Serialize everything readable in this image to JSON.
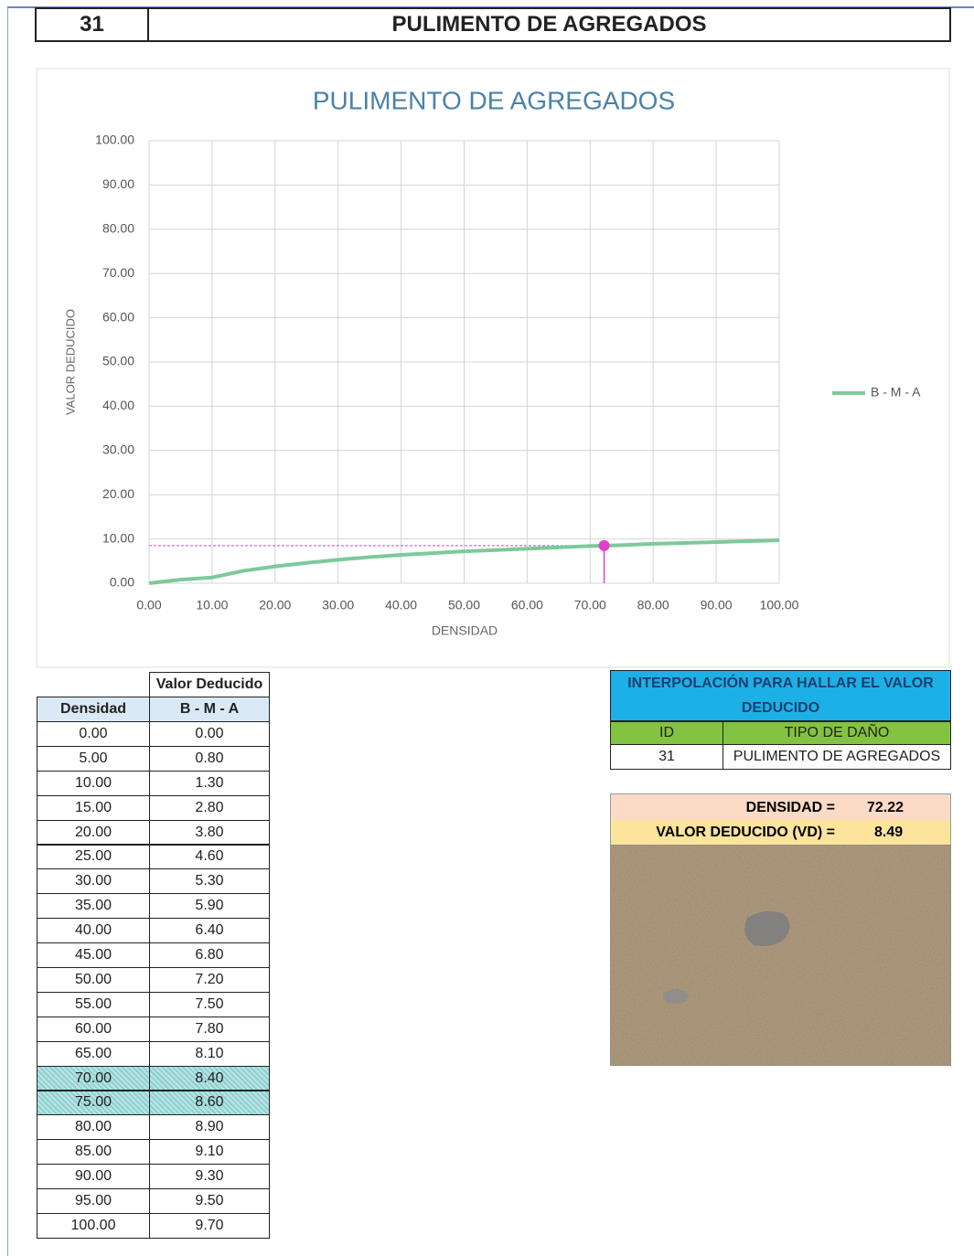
{
  "header": {
    "id": "31",
    "title": "PULIMENTO DE AGREGADOS"
  },
  "chart_data": {
    "type": "line",
    "title": "PULIMENTO  DE AGREGADOS",
    "x_label": "DENSIDAD",
    "y_label": "VALOR DEDUCIDO",
    "x": [
      0,
      5,
      10,
      15,
      20,
      25,
      30,
      35,
      40,
      45,
      50,
      55,
      60,
      65,
      70,
      75,
      80,
      85,
      90,
      95,
      100
    ],
    "series": [
      {
        "name": "B - M - A",
        "color": "#7dc99a",
        "values": [
          0,
          0.8,
          1.3,
          2.8,
          3.8,
          4.6,
          5.3,
          5.9,
          6.4,
          6.8,
          7.2,
          7.5,
          7.8,
          8.1,
          8.4,
          8.6,
          8.9,
          9.1,
          9.3,
          9.5,
          9.7
        ]
      }
    ],
    "xlim": [
      0,
      100
    ],
    "ylim": [
      0,
      100
    ],
    "xticks": [
      {
        "value": 0,
        "label": "0.00"
      },
      {
        "value": 10,
        "label": "10.00"
      },
      {
        "value": 20,
        "label": "20.00"
      },
      {
        "value": 30,
        "label": "30.00"
      },
      {
        "value": 40,
        "label": "40.00"
      },
      {
        "value": 50,
        "label": "50.00"
      },
      {
        "value": 60,
        "label": "60.00"
      },
      {
        "value": 70,
        "label": "70.00"
      },
      {
        "value": 80,
        "label": "80.00"
      },
      {
        "value": 90,
        "label": "90.00"
      },
      {
        "value": 100,
        "label": "100.00"
      }
    ],
    "yticks": [
      {
        "value": 0,
        "label": "0.00"
      },
      {
        "value": 10,
        "label": "10.00"
      },
      {
        "value": 20,
        "label": "20.00"
      },
      {
        "value": 30,
        "label": "30.00"
      },
      {
        "value": 40,
        "label": "40.00"
      },
      {
        "value": 50,
        "label": "50.00"
      },
      {
        "value": 60,
        "label": "60.00"
      },
      {
        "value": 70,
        "label": "70.00"
      },
      {
        "value": 80,
        "label": "80.00"
      },
      {
        "value": 90,
        "label": "90.00"
      },
      {
        "value": 100,
        "label": "100.00"
      }
    ],
    "grid": true,
    "legend": "right",
    "point": {
      "x": 72.22,
      "y": 8.49,
      "color": "#e040c8"
    }
  },
  "table": {
    "group_header": "Valor Deducido",
    "header": [
      "Densidad",
      "B - M - A"
    ],
    "rows": [
      [
        "0.00",
        "0.00"
      ],
      [
        "5.00",
        "0.80"
      ],
      [
        "10.00",
        "1.30"
      ],
      [
        "15.00",
        "2.80"
      ],
      [
        "20.00",
        "3.80"
      ],
      [
        "25.00",
        "4.60"
      ],
      [
        "30.00",
        "5.30"
      ],
      [
        "35.00",
        "5.90"
      ],
      [
        "40.00",
        "6.40"
      ],
      [
        "45.00",
        "6.80"
      ],
      [
        "50.00",
        "7.20"
      ],
      [
        "55.00",
        "7.50"
      ],
      [
        "60.00",
        "7.80"
      ],
      [
        "65.00",
        "8.10"
      ],
      [
        "70.00",
        "8.40"
      ],
      [
        "75.00",
        "8.60"
      ],
      [
        "80.00",
        "8.90"
      ],
      [
        "85.00",
        "9.10"
      ],
      [
        "90.00",
        "9.30"
      ],
      [
        "95.00",
        "9.50"
      ],
      [
        "100.00",
        "9.70"
      ]
    ],
    "highlighted_rows": [
      14,
      15
    ]
  },
  "interpolation": {
    "title": "INTERPOLACIÓN PARA HALLAR EL VALOR DEDUCIDO",
    "columns": [
      "ID",
      "TIPO DE DAÑO"
    ],
    "row": [
      "31",
      "PULIMENTO DE AGREGADOS"
    ],
    "density_label": "DENSIDAD =",
    "density": "72.22",
    "vd_label": "VALOR DEDUCIDO (VD) =",
    "vd": "8.49"
  }
}
